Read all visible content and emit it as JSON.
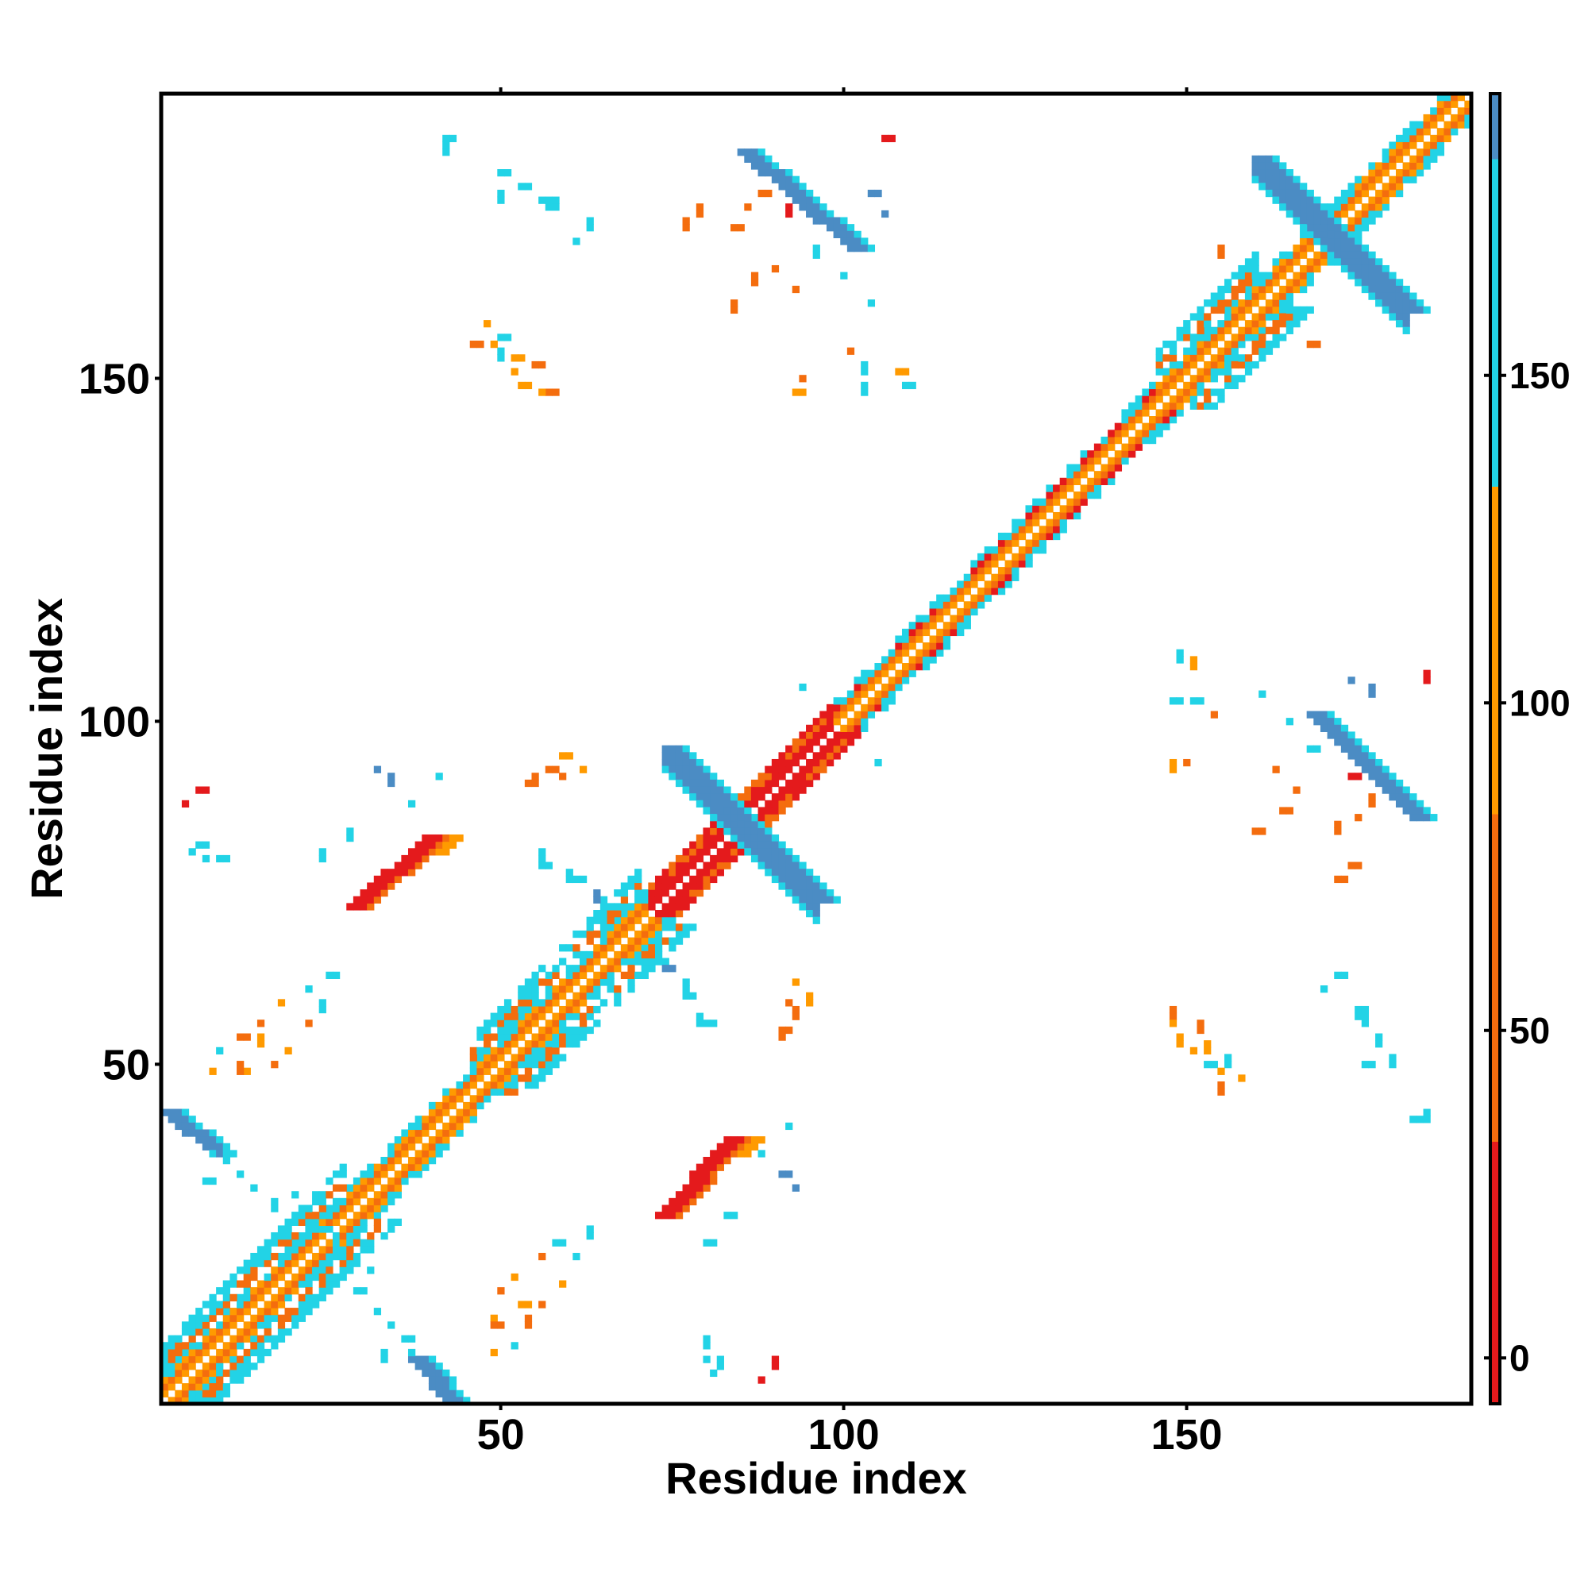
{
  "chart_data": {
    "type": "heatmap",
    "title": "",
    "xlabel": "Residue index",
    "ylabel": "Residue index",
    "xlim": [
      1,
      191
    ],
    "ylim": [
      1,
      191
    ],
    "x_ticks": [
      50,
      100,
      150
    ],
    "y_ticks": [
      50,
      100,
      150
    ],
    "x_tick_labels": [
      "50",
      "100",
      "150"
    ],
    "y_tick_labels": [
      "50",
      "100",
      "150"
    ],
    "grid": false,
    "colorbar": {
      "placement": "right",
      "ticks": [
        0,
        50,
        100,
        150
      ],
      "tick_labels": [
        "0",
        "50",
        "100",
        "150"
      ],
      "range": [
        -7,
        193
      ],
      "bands": [
        {
          "from": -7,
          "to": 33,
          "color": "#e41a1c"
        },
        {
          "from": 33,
          "to": 83,
          "color": "#f46d0e"
        },
        {
          "from": 83,
          "to": 133,
          "color": "#ff9a00"
        },
        {
          "from": 133,
          "to": 183,
          "color": "#22d3e6"
        },
        {
          "from": 183,
          "to": 243,
          "color": "#4b8cc4"
        },
        {
          "from": 243,
          "to": 293,
          "color": "#ffffff"
        }
      ]
    },
    "colors": {
      "red": "#e41a1c",
      "orange_red": "#f46d0e",
      "orange": "#ff9a00",
      "cyan": "#22d3e6",
      "steel_blue": "#4b8cc4"
    },
    "patterns": {
      "diagonal_band_segments": [
        [
          1,
          27
        ],
        [
          28,
          45
        ],
        [
          46,
          70
        ],
        [
          71,
          98
        ],
        [
          99,
          145
        ],
        [
          146,
          191
        ]
      ],
      "antidiagonal_blocks": [
        {
          "x": [
            74,
            96
          ],
          "y": [
            74,
            96
          ],
          "color": "steel_blue"
        },
        {
          "x": [
            160,
            182
          ],
          "y": [
            160,
            182
          ],
          "color": "steel_blue"
        }
      ],
      "offdiag_blue_stripes": [
        {
          "x": [
            85,
            101
          ],
          "y": [
            183,
            169
          ],
          "color": "steel_blue"
        },
        {
          "x": [
            168,
            183
          ],
          "y": [
            101,
            86
          ],
          "color": "steel_blue"
        },
        {
          "x": [
            1,
            8
          ],
          "y": [
            43,
            37
          ],
          "color": "steel_blue"
        },
        {
          "x": [
            37,
            42
          ],
          "y": [
            7,
            1
          ],
          "color": "steel_blue"
        }
      ],
      "offdiag_red_stripes": [
        {
          "x": [
            28,
            39
          ],
          "y": [
            73,
            83
          ],
          "color": "red"
        },
        {
          "x": [
            73,
            83
          ],
          "y": [
            28,
            39
          ],
          "color": "red"
        }
      ]
    }
  }
}
